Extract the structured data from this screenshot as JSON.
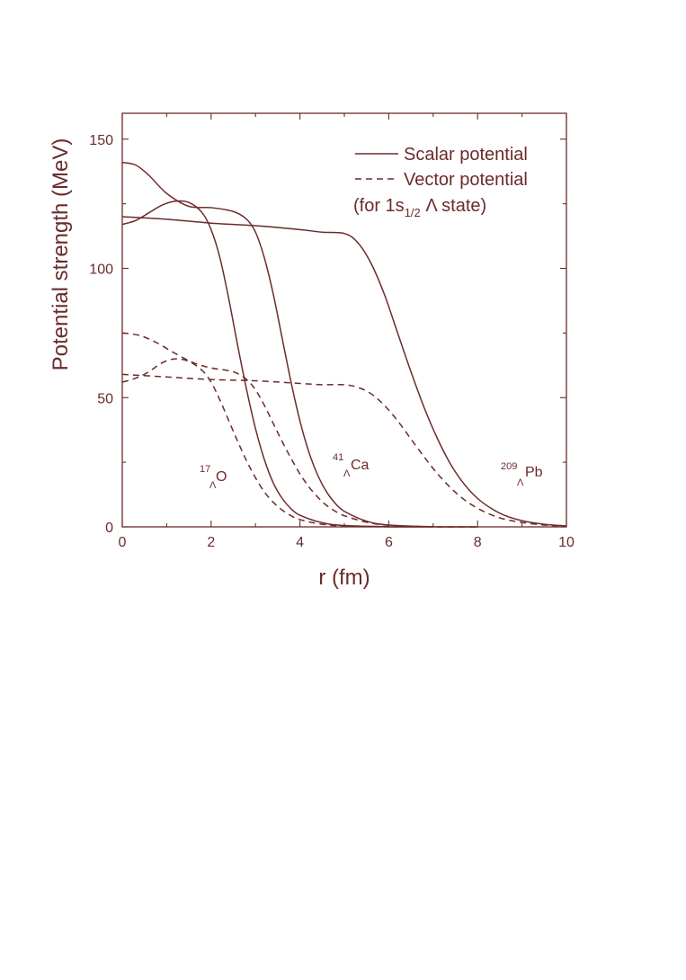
{
  "chart_data": {
    "type": "line",
    "xlabel": "r (fm)",
    "ylabel": "Potential strength (MeV)",
    "xlim": [
      0,
      10
    ],
    "ylim": [
      0,
      160
    ],
    "x_ticks": [
      "0",
      "2",
      "4",
      "6",
      "8",
      "10"
    ],
    "y_ticks": [
      "0",
      "50",
      "100",
      "150"
    ],
    "legend": {
      "placement": "top-right",
      "scalar_label": "Scalar potential",
      "vector_label": "Vector potential",
      "note_prefix": "(for 1s",
      "note_sub": "1/2",
      "note_suffix": " Λ state)"
    },
    "annotations": [
      {
        "mass": "17",
        "hyp": "Λ",
        "elem": "O",
        "x": 2.0,
        "y": 20
      },
      {
        "mass": "41",
        "hyp": "Λ",
        "elem": "Ca",
        "x": 5.0,
        "y": 24
      },
      {
        "mass": "209",
        "hyp": "Λ",
        "elem": "Pb",
        "x": 9.0,
        "y": 21
      }
    ],
    "series": [
      {
        "kind": "scalar",
        "color": "#6b2b2b",
        "points": [
          [
            0,
            117
          ],
          [
            0.3,
            118.5
          ],
          [
            0.6,
            121.5
          ],
          [
            0.9,
            124.5
          ],
          [
            1.2,
            126
          ],
          [
            1.5,
            125.5
          ],
          [
            1.8,
            121.5
          ],
          [
            2.0,
            115
          ],
          [
            2.2,
            104
          ],
          [
            2.4,
            88
          ],
          [
            2.6,
            70
          ],
          [
            2.8,
            53
          ],
          [
            3.0,
            38
          ],
          [
            3.2,
            26
          ],
          [
            3.4,
            17
          ],
          [
            3.6,
            11
          ],
          [
            3.8,
            7
          ],
          [
            4.0,
            4.5
          ],
          [
            4.5,
            1.6
          ],
          [
            5.0,
            0.5
          ],
          [
            6.0,
            0.05
          ],
          [
            7.0,
            0
          ]
        ]
      },
      {
        "kind": "scalar",
        "color": "#6b2b2b",
        "points": [
          [
            0,
            141
          ],
          [
            0.3,
            140
          ],
          [
            0.6,
            136
          ],
          [
            1.0,
            129
          ],
          [
            1.5,
            124
          ],
          [
            2.0,
            123.5
          ],
          [
            2.5,
            122
          ],
          [
            2.8,
            119
          ],
          [
            3.0,
            114
          ],
          [
            3.2,
            104
          ],
          [
            3.4,
            90
          ],
          [
            3.6,
            73
          ],
          [
            3.8,
            56
          ],
          [
            4.0,
            41
          ],
          [
            4.2,
            29
          ],
          [
            4.4,
            20
          ],
          [
            4.6,
            13.5
          ],
          [
            4.8,
            9
          ],
          [
            5.0,
            6
          ],
          [
            5.5,
            2.2
          ],
          [
            6.0,
            0.7
          ],
          [
            7.0,
            0.05
          ],
          [
            8.0,
            0
          ]
        ]
      },
      {
        "kind": "scalar",
        "color": "#6b2b2b",
        "points": [
          [
            0,
            120
          ],
          [
            1.0,
            119
          ],
          [
            2.0,
            117.5
          ],
          [
            3.0,
            116.5
          ],
          [
            4.0,
            115
          ],
          [
            4.5,
            114
          ],
          [
            5.0,
            113.5
          ],
          [
            5.3,
            110
          ],
          [
            5.6,
            102
          ],
          [
            5.9,
            90
          ],
          [
            6.2,
            75
          ],
          [
            6.5,
            60
          ],
          [
            6.8,
            46
          ],
          [
            7.1,
            34
          ],
          [
            7.4,
            24
          ],
          [
            7.7,
            16.5
          ],
          [
            8.0,
            11
          ],
          [
            8.3,
            7.2
          ],
          [
            8.6,
            4.5
          ],
          [
            9.0,
            2.4
          ],
          [
            9.5,
            1.0
          ],
          [
            10.0,
            0.4
          ]
        ]
      },
      {
        "kind": "vector",
        "color": "#6b2b2b",
        "points": [
          [
            0,
            56
          ],
          [
            0.3,
            57.5
          ],
          [
            0.6,
            60
          ],
          [
            0.9,
            63.5
          ],
          [
            1.2,
            65
          ],
          [
            1.5,
            64
          ],
          [
            1.8,
            60.5
          ],
          [
            2.0,
            56
          ],
          [
            2.2,
            49
          ],
          [
            2.4,
            41
          ],
          [
            2.6,
            33
          ],
          [
            2.8,
            25.5
          ],
          [
            3.0,
            19
          ],
          [
            3.2,
            13.5
          ],
          [
            3.4,
            9.5
          ],
          [
            3.6,
            6.5
          ],
          [
            3.8,
            4.3
          ],
          [
            4.0,
            2.8
          ],
          [
            4.5,
            1.0
          ],
          [
            5.0,
            0.3
          ],
          [
            6.0,
            0
          ]
        ]
      },
      {
        "kind": "vector",
        "color": "#6b2b2b",
        "points": [
          [
            0,
            75
          ],
          [
            0.4,
            74
          ],
          [
            0.8,
            71
          ],
          [
            1.2,
            67
          ],
          [
            1.6,
            63.5
          ],
          [
            2.0,
            61.5
          ],
          [
            2.5,
            60
          ],
          [
            2.8,
            57
          ],
          [
            3.0,
            53
          ],
          [
            3.2,
            47
          ],
          [
            3.4,
            40
          ],
          [
            3.6,
            33
          ],
          [
            3.8,
            26.5
          ],
          [
            4.0,
            20.5
          ],
          [
            4.2,
            15.5
          ],
          [
            4.4,
            11.5
          ],
          [
            4.6,
            8.3
          ],
          [
            4.8,
            6
          ],
          [
            5.0,
            4.3
          ],
          [
            5.5,
            1.8
          ],
          [
            6.0,
            0.6
          ],
          [
            7.0,
            0.05
          ],
          [
            8.0,
            0
          ]
        ]
      },
      {
        "kind": "vector",
        "color": "#6b2b2b",
        "points": [
          [
            0,
            59
          ],
          [
            1.0,
            58
          ],
          [
            2.0,
            57
          ],
          [
            3.0,
            56.5
          ],
          [
            4.0,
            55.5
          ],
          [
            4.5,
            55
          ],
          [
            5.0,
            55
          ],
          [
            5.3,
            54
          ],
          [
            5.6,
            51.5
          ],
          [
            5.9,
            47
          ],
          [
            6.2,
            41
          ],
          [
            6.5,
            34
          ],
          [
            6.8,
            27
          ],
          [
            7.1,
            20.5
          ],
          [
            7.4,
            15
          ],
          [
            7.7,
            10.5
          ],
          [
            8.0,
            7.2
          ],
          [
            8.3,
            4.7
          ],
          [
            8.6,
            3
          ],
          [
            9.0,
            1.7
          ],
          [
            9.5,
            0.7
          ],
          [
            10.0,
            0.25
          ]
        ]
      }
    ]
  }
}
